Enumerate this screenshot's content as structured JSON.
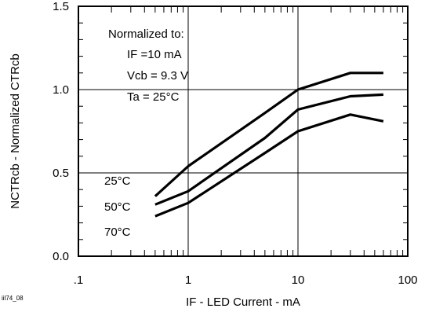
{
  "chart_data": {
    "type": "line",
    "xscale": "log",
    "xlim": [
      0.1,
      100
    ],
    "ylim": [
      0,
      1.5
    ],
    "xlabel": "IF - LED Current - mA",
    "ylabel": "NCTRcb - Normalized CTRcb",
    "x_ticks": [
      {
        "value": 0.1,
        "label": ".1"
      },
      {
        "value": 1,
        "label": "1"
      },
      {
        "value": 10,
        "label": "10"
      },
      {
        "value": 100,
        "label": "100"
      }
    ],
    "y_ticks": [
      {
        "value": 0,
        "label": "0.0"
      },
      {
        "value": 0.5,
        "label": "0.5"
      },
      {
        "value": 1.0,
        "label": "1.0"
      },
      {
        "value": 1.5,
        "label": "1.5"
      }
    ],
    "grid": true,
    "annotation_lines": [
      "Normalized to:",
      "IF =10 mA",
      "Vcb = 9.3 V",
      "Ta = 25°C"
    ],
    "series_labels": [
      "25°C",
      "50°C",
      "70°C"
    ],
    "series": [
      {
        "name": "25°C",
        "x": [
          0.5,
          1,
          5,
          10,
          30,
          60
        ],
        "y": [
          0.36,
          0.54,
          0.86,
          1.0,
          1.1,
          1.1
        ]
      },
      {
        "name": "50°C",
        "x": [
          0.5,
          1,
          5,
          10,
          30,
          60
        ],
        "y": [
          0.31,
          0.39,
          0.71,
          0.88,
          0.96,
          0.97
        ]
      },
      {
        "name": "70°C",
        "x": [
          0.5,
          1,
          5,
          10,
          30,
          60
        ],
        "y": [
          0.24,
          0.32,
          0.62,
          0.75,
          0.85,
          0.81
        ]
      }
    ],
    "figure_id": "iil74_08"
  }
}
